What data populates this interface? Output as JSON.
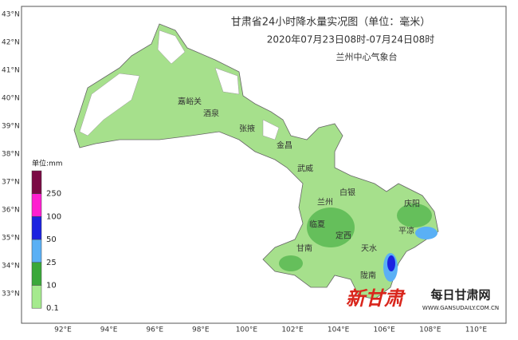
{
  "header": {
    "title": "甘肃省24小时降水量实况图（单位：毫米）",
    "subtitle": "2020年07月23日08时-07月24日08时",
    "source": "兰州中心气象台"
  },
  "lat_labels": [
    "43°N",
    "42°N",
    "41°N",
    "40°N",
    "39°N",
    "38°N",
    "37°N",
    "36°N",
    "35°N",
    "34°N",
    "33°N"
  ],
  "lon_labels": [
    "92°E",
    "94°E",
    "96°E",
    "98°E",
    "100°E",
    "102°E",
    "104°E",
    "106°E",
    "108°E",
    "110°E"
  ],
  "legend": {
    "title": "单位:mm",
    "colors": [
      "#7b0a45",
      "#ff1fd0",
      "#1c22e0",
      "#5ab0f5",
      "#3aa83a",
      "#a5ea8e"
    ],
    "labels": [
      "250",
      "100",
      "50",
      "25",
      "10",
      "0.1"
    ]
  },
  "cities": [
    "嘉峪关",
    "酒泉",
    "张掖",
    "金昌",
    "武威",
    "白银",
    "兰州",
    "庆阳",
    "临夏",
    "定西",
    "平凉",
    "甘南",
    "天水",
    "陇南"
  ],
  "watermark": {
    "logo": "新甘肃",
    "site": "每日甘肃网",
    "url": "WWW.GANSUDAILY.COM.CN"
  }
}
